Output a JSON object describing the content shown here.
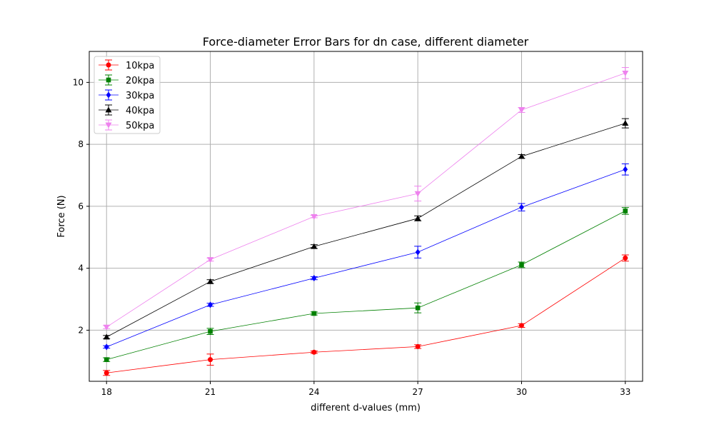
{
  "chart_data": {
    "type": "line",
    "title": "Force-diameter Error Bars for dn case, different diameter",
    "xlabel": "different d-values (mm)",
    "ylabel": "Force (N)",
    "x": [
      18,
      21,
      24,
      27,
      30,
      33
    ],
    "xlim": [
      17.5,
      33.5
    ],
    "ylim": [
      0.35,
      11.0
    ],
    "xticks": [
      "18",
      "21",
      "24",
      "27",
      "30",
      "33"
    ],
    "yticks": [
      "2",
      "4",
      "6",
      "8",
      "10"
    ],
    "grid": true,
    "legend_position": "top-left",
    "series": [
      {
        "name": "10kpa",
        "color": "#ff0000",
        "marker": "circle",
        "values": [
          0.62,
          1.05,
          1.29,
          1.47,
          2.15,
          4.33
        ],
        "errors": [
          0.08,
          0.18,
          0.04,
          0.06,
          0.06,
          0.1
        ]
      },
      {
        "name": "20kpa",
        "color": "#008000",
        "marker": "square",
        "values": [
          1.05,
          1.96,
          2.54,
          2.72,
          4.11,
          5.85
        ],
        "errors": [
          0.06,
          0.1,
          0.05,
          0.16,
          0.09,
          0.11
        ]
      },
      {
        "name": "30kpa",
        "color": "#0000ff",
        "marker": "diamond",
        "values": [
          1.46,
          2.82,
          3.68,
          4.52,
          5.97,
          7.19
        ],
        "errors": [
          0.04,
          0.05,
          0.05,
          0.19,
          0.12,
          0.18
        ]
      },
      {
        "name": "40kpa",
        "color": "#000000",
        "marker": "triangle-up",
        "values": [
          1.78,
          3.57,
          4.7,
          5.61,
          7.61,
          8.68
        ],
        "errors": [
          0.05,
          0.06,
          0.06,
          0.08,
          0.06,
          0.15
        ]
      },
      {
        "name": "50kpa",
        "color": "#ee82ee",
        "marker": "triangle-down",
        "values": [
          2.1,
          4.28,
          5.67,
          6.41,
          9.11,
          10.3
        ],
        "errors": [
          0.05,
          0.05,
          0.04,
          0.24,
          0.08,
          0.18
        ]
      }
    ]
  }
}
